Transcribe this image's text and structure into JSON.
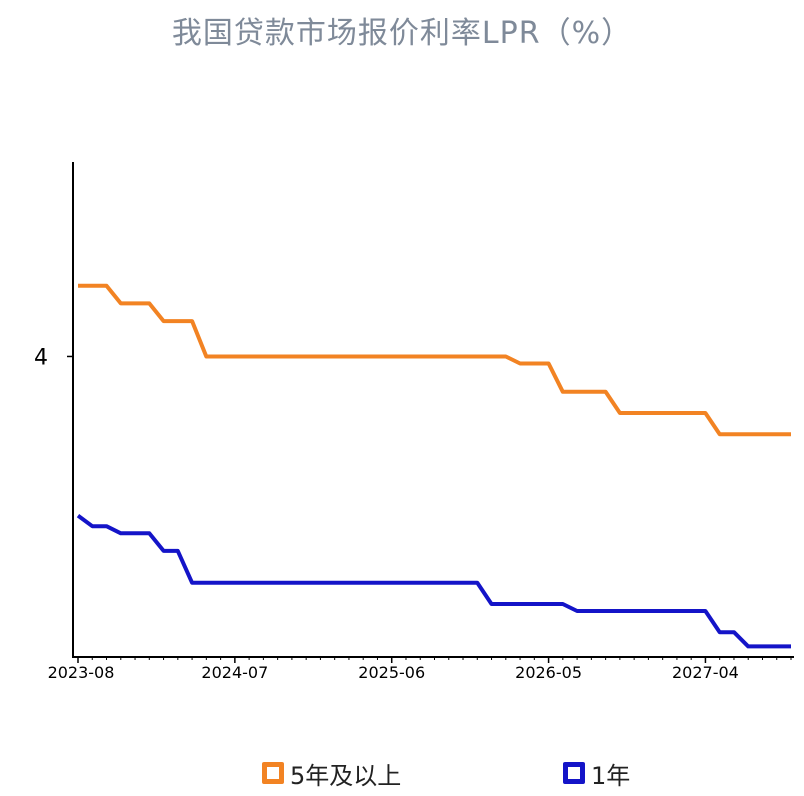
{
  "chart_data": {
    "type": "line",
    "title": "我国贷款市场报价利率LPR（%）",
    "x_tick_labels": [
      "2023-08",
      "2024-07",
      "2025-06",
      "2026-05",
      "2027-04"
    ],
    "x_tick_positions": [
      0,
      11,
      22,
      33,
      44
    ],
    "x_range": [
      0,
      51
    ],
    "y_ticks": [
      4
    ],
    "ylim": [
      3.15,
      4.55
    ],
    "grid": false,
    "legend_position": "bottom",
    "series": [
      {
        "name": "5年及以上",
        "color": "#f28323",
        "values": [
          4.2,
          4.2,
          4.2,
          4.15,
          4.15,
          4.15,
          4.1,
          4.1,
          4.1,
          4.0,
          4.0,
          4.0,
          4.0,
          4.0,
          4.0,
          4.0,
          4.0,
          4.0,
          4.0,
          4.0,
          4.0,
          4.0,
          4.0,
          4.0,
          4.0,
          4.0,
          4.0,
          4.0,
          4.0,
          4.0,
          4.0,
          3.98,
          3.98,
          3.98,
          3.9,
          3.9,
          3.9,
          3.9,
          3.84,
          3.84,
          3.84,
          3.84,
          3.84,
          3.84,
          3.84,
          3.78,
          3.78,
          3.78,
          3.78,
          3.78,
          3.78
        ]
      },
      {
        "name": "1年",
        "color": "#1414c8",
        "values": [
          3.55,
          3.52,
          3.52,
          3.5,
          3.5,
          3.5,
          3.45,
          3.45,
          3.36,
          3.36,
          3.36,
          3.36,
          3.36,
          3.36,
          3.36,
          3.36,
          3.36,
          3.36,
          3.36,
          3.36,
          3.36,
          3.36,
          3.36,
          3.36,
          3.36,
          3.36,
          3.36,
          3.36,
          3.36,
          3.3,
          3.3,
          3.3,
          3.3,
          3.3,
          3.3,
          3.28,
          3.28,
          3.28,
          3.28,
          3.28,
          3.28,
          3.28,
          3.28,
          3.28,
          3.28,
          3.22,
          3.22,
          3.18,
          3.18,
          3.18,
          3.18
        ]
      }
    ]
  }
}
